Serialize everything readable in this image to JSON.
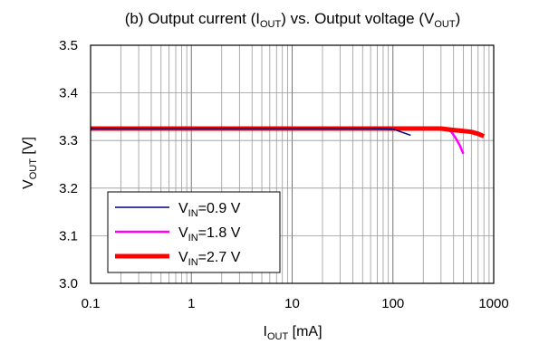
{
  "chart_data": {
    "type": "line",
    "title": {
      "pre": "(b) Output current (I",
      "sub1": "OUT",
      "mid": ") vs. Output voltage (V",
      "sub2": "OUT",
      "post": ")"
    },
    "xlabel": {
      "main": "I",
      "sub": "OUT",
      "post": " [mA]"
    },
    "ylabel": {
      "main": "V",
      "sub": "OUT",
      "post": " [V]"
    },
    "x_scale": "log",
    "xlim": [
      0.1,
      1000
    ],
    "ylim": [
      3.0,
      3.5
    ],
    "x_ticks": [
      {
        "value": 0.1,
        "label": "0.1"
      },
      {
        "value": 1,
        "label": "1"
      },
      {
        "value": 10,
        "label": "10"
      },
      {
        "value": 100,
        "label": "100"
      },
      {
        "value": 1000,
        "label": "1000"
      }
    ],
    "y_ticks": [
      {
        "value": 3.0,
        "label": "3.0"
      },
      {
        "value": 3.1,
        "label": "3.1"
      },
      {
        "value": 3.2,
        "label": "3.2"
      },
      {
        "value": 3.3,
        "label": "3.3"
      },
      {
        "value": 3.4,
        "label": "3.4"
      },
      {
        "value": 3.5,
        "label": "3.5"
      }
    ],
    "grid": true,
    "legend_position": "bottom-left",
    "series": [
      {
        "name": {
          "main": "V",
          "sub": "IN",
          "post": "=0.9 V"
        },
        "color": "#000080",
        "width": 1.5,
        "x": [
          0.1,
          1,
          10,
          60,
          100,
          120,
          150
        ],
        "y": [
          3.325,
          3.325,
          3.325,
          3.325,
          3.324,
          3.318,
          3.311
        ]
      },
      {
        "name": {
          "main": "V",
          "sub": "IN",
          "post": "=1.8 V"
        },
        "color": "#ff00ff",
        "width": 2.5,
        "x": [
          0.1,
          1,
          10,
          100,
          300,
          350,
          380,
          420,
          460,
          500
        ],
        "y": [
          3.325,
          3.325,
          3.325,
          3.325,
          3.325,
          3.323,
          3.318,
          3.305,
          3.29,
          3.272
        ]
      },
      {
        "name": {
          "main": "V",
          "sub": "IN",
          "post": "=2.7 V"
        },
        "color": "#ff0000",
        "width": 5,
        "x": [
          0.1,
          1,
          10,
          100,
          300,
          400,
          500,
          600,
          700,
          800
        ],
        "y": [
          3.325,
          3.325,
          3.325,
          3.325,
          3.325,
          3.322,
          3.32,
          3.318,
          3.314,
          3.309
        ]
      }
    ]
  }
}
